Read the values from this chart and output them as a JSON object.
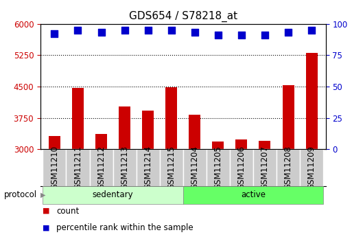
{
  "title": "GDS654 / S78218_at",
  "samples": [
    "GSM11210",
    "GSM11211",
    "GSM11212",
    "GSM11213",
    "GSM11214",
    "GSM11215",
    "GSM11204",
    "GSM11205",
    "GSM11206",
    "GSM11207",
    "GSM11208",
    "GSM11209"
  ],
  "counts": [
    3320,
    4460,
    3370,
    4020,
    3920,
    4480,
    3820,
    3180,
    3230,
    3200,
    4530,
    5300
  ],
  "percentile_ranks": [
    92,
    95,
    93,
    95,
    95,
    95,
    93,
    91,
    91,
    91,
    93,
    95
  ],
  "ylim_left": [
    3000,
    6000
  ],
  "ylim_right": [
    0,
    100
  ],
  "yticks_left": [
    3000,
    3750,
    4500,
    5250,
    6000
  ],
  "yticks_right": [
    0,
    25,
    50,
    75,
    100
  ],
  "bar_color": "#cc0000",
  "dot_color": "#0000cc",
  "n_sedentary": 6,
  "n_active": 6,
  "sedentary_label": "sedentary",
  "active_label": "active",
  "protocol_label": "protocol",
  "legend_count_label": "count",
  "legend_percentile_label": "percentile rank within the sample",
  "sedentary_color": "#ccffcc",
  "active_color": "#66ff66",
  "bar_color_left_axis": "#cc0000",
  "dot_color_right_axis": "#0000cc",
  "cell_color": "#cccccc",
  "cell_edge_color": "#ffffff",
  "bar_width": 0.5,
  "dot_size": 50,
  "dot_marker": "s",
  "title_fontsize": 11,
  "tick_fontsize": 8.5,
  "label_fontsize": 8.5
}
